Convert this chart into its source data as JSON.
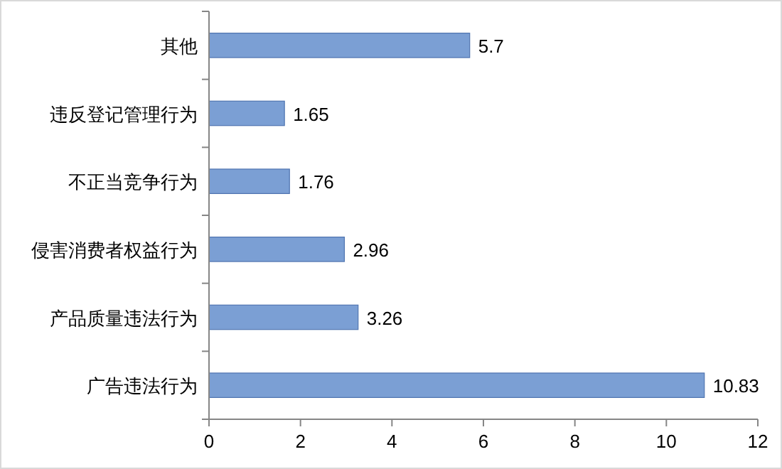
{
  "chart_data": {
    "type": "bar",
    "orientation": "horizontal",
    "categories": [
      "其他",
      "违反登记管理行为",
      "不正当竞争行为",
      "侵害消费者权益行为",
      "产品质量违法行为",
      "广告违法行为"
    ],
    "values": [
      5.7,
      1.65,
      1.76,
      2.96,
      3.26,
      10.83
    ],
    "color": "#7b9fd4",
    "data_labels": true,
    "xlim": [
      0,
      12
    ],
    "xticks": [
      0,
      2,
      4,
      6,
      8,
      10,
      12
    ],
    "grid": false
  }
}
